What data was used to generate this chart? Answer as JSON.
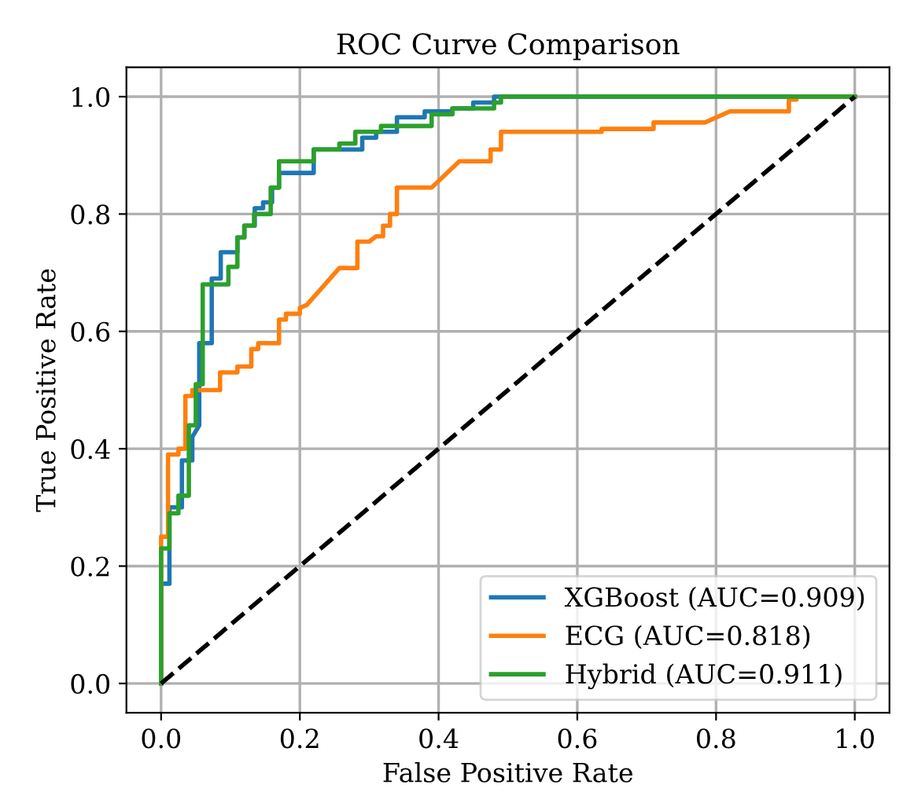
{
  "chart_data": {
    "type": "line",
    "title": "ROC Curve Comparison",
    "xlabel": "False Positive Rate",
    "ylabel": "True Positive Rate",
    "xlim": [
      -0.05,
      1.05
    ],
    "ylim": [
      -0.05,
      1.05
    ],
    "xticks": [
      {
        "value": 0,
        "label": "0.0"
      },
      {
        "value": 0.2,
        "label": "0.2"
      },
      {
        "value": 0.4,
        "label": "0.4"
      },
      {
        "value": 0.6,
        "label": "0.6"
      },
      {
        "value": 0.8,
        "label": "0.8"
      },
      {
        "value": 1,
        "label": "1.0"
      }
    ],
    "yticks": [
      {
        "value": 0,
        "label": "0.0"
      },
      {
        "value": 0.2,
        "label": "0.2"
      },
      {
        "value": 0.4,
        "label": "0.4"
      },
      {
        "value": 0.6,
        "label": "0.6"
      },
      {
        "value": 0.8,
        "label": "0.8"
      },
      {
        "value": 1,
        "label": "1.0"
      }
    ],
    "grid": true,
    "legend": "bottom right",
    "marker": "none",
    "series": [
      {
        "name": "XGBoost (AUC=0.909)",
        "color": "#1f77b4",
        "line_style": "solid",
        "x": [
          0,
          0,
          0.012,
          0.012,
          0.03,
          0.03,
          0.045,
          0.045,
          0.055,
          0.055,
          0.073,
          0.073,
          0.086,
          0.086,
          0.11,
          0.11,
          0.12,
          0.12,
          0.135,
          0.135,
          0.147,
          0.147,
          0.16,
          0.16,
          0.17,
          0.17,
          0.22,
          0.22,
          0.29,
          0.29,
          0.31,
          0.31,
          0.34,
          0.34,
          0.38,
          0.38,
          0.42,
          0.42,
          0.45,
          0.45,
          0.48,
          0.48,
          1
        ],
        "values": [
          0,
          0.17,
          0.17,
          0.3,
          0.3,
          0.38,
          0.38,
          0.42,
          0.44,
          0.58,
          0.58,
          0.69,
          0.69,
          0.735,
          0.735,
          0.76,
          0.76,
          0.78,
          0.78,
          0.81,
          0.81,
          0.82,
          0.82,
          0.845,
          0.845,
          0.87,
          0.87,
          0.91,
          0.91,
          0.93,
          0.93,
          0.94,
          0.94,
          0.965,
          0.965,
          0.975,
          0.975,
          0.98,
          0.98,
          0.99,
          0.99,
          1,
          1
        ]
      },
      {
        "name": "ECG (AUC=0.818)",
        "color": "#ff7f0e",
        "line_style": "solid",
        "x": [
          0,
          0,
          0.01,
          0.01,
          0.025,
          0.025,
          0.035,
          0.035,
          0.045,
          0.045,
          0.085,
          0.085,
          0.11,
          0.11,
          0.13,
          0.13,
          0.14,
          0.14,
          0.17,
          0.17,
          0.18,
          0.18,
          0.2,
          0.2,
          0.21,
          0.257,
          0.283,
          0.283,
          0.3,
          0.31,
          0.32,
          0.32,
          0.33,
          0.33,
          0.34,
          0.34,
          0.39,
          0.43,
          0.475,
          0.475,
          0.49,
          0.49,
          0.635,
          0.635,
          0.71,
          0.71,
          0.784,
          0.82,
          0.905,
          0.905,
          0.916,
          0.916,
          1
        ],
        "values": [
          0,
          0.25,
          0.25,
          0.39,
          0.39,
          0.4,
          0.4,
          0.49,
          0.49,
          0.5,
          0.5,
          0.53,
          0.53,
          0.54,
          0.54,
          0.57,
          0.57,
          0.58,
          0.58,
          0.62,
          0.62,
          0.63,
          0.63,
          0.64,
          0.645,
          0.708,
          0.708,
          0.753,
          0.753,
          0.762,
          0.762,
          0.78,
          0.78,
          0.8,
          0.8,
          0.845,
          0.845,
          0.89,
          0.89,
          0.91,
          0.91,
          0.94,
          0.94,
          0.945,
          0.945,
          0.956,
          0.956,
          0.975,
          0.975,
          0.995,
          0.995,
          1,
          1
        ]
      },
      {
        "name": "Hybrid (AUC=0.911)",
        "color": "#2ca02c",
        "line_style": "solid",
        "x": [
          0,
          0,
          0.012,
          0.012,
          0.025,
          0.025,
          0.04,
          0.04,
          0.05,
          0.05,
          0.06,
          0.06,
          0.097,
          0.097,
          0.11,
          0.11,
          0.12,
          0.12,
          0.134,
          0.134,
          0.158,
          0.158,
          0.17,
          0.17,
          0.22,
          0.22,
          0.257,
          0.257,
          0.28,
          0.28,
          0.317,
          0.317,
          0.39,
          0.39,
          0.42,
          0.42,
          0.48,
          0.48,
          0.49,
          0.49,
          1
        ],
        "values": [
          0,
          0.23,
          0.23,
          0.29,
          0.29,
          0.32,
          0.32,
          0.44,
          0.44,
          0.51,
          0.51,
          0.68,
          0.68,
          0.71,
          0.71,
          0.76,
          0.76,
          0.78,
          0.78,
          0.8,
          0.8,
          0.845,
          0.845,
          0.89,
          0.89,
          0.91,
          0.91,
          0.92,
          0.92,
          0.94,
          0.94,
          0.95,
          0.95,
          0.97,
          0.97,
          0.98,
          0.98,
          0.99,
          0.99,
          1,
          1
        ]
      },
      {
        "color": "#000000",
        "line_style": "dashed",
        "x": [
          0,
          1
        ],
        "values": [
          0,
          1
        ]
      }
    ]
  }
}
